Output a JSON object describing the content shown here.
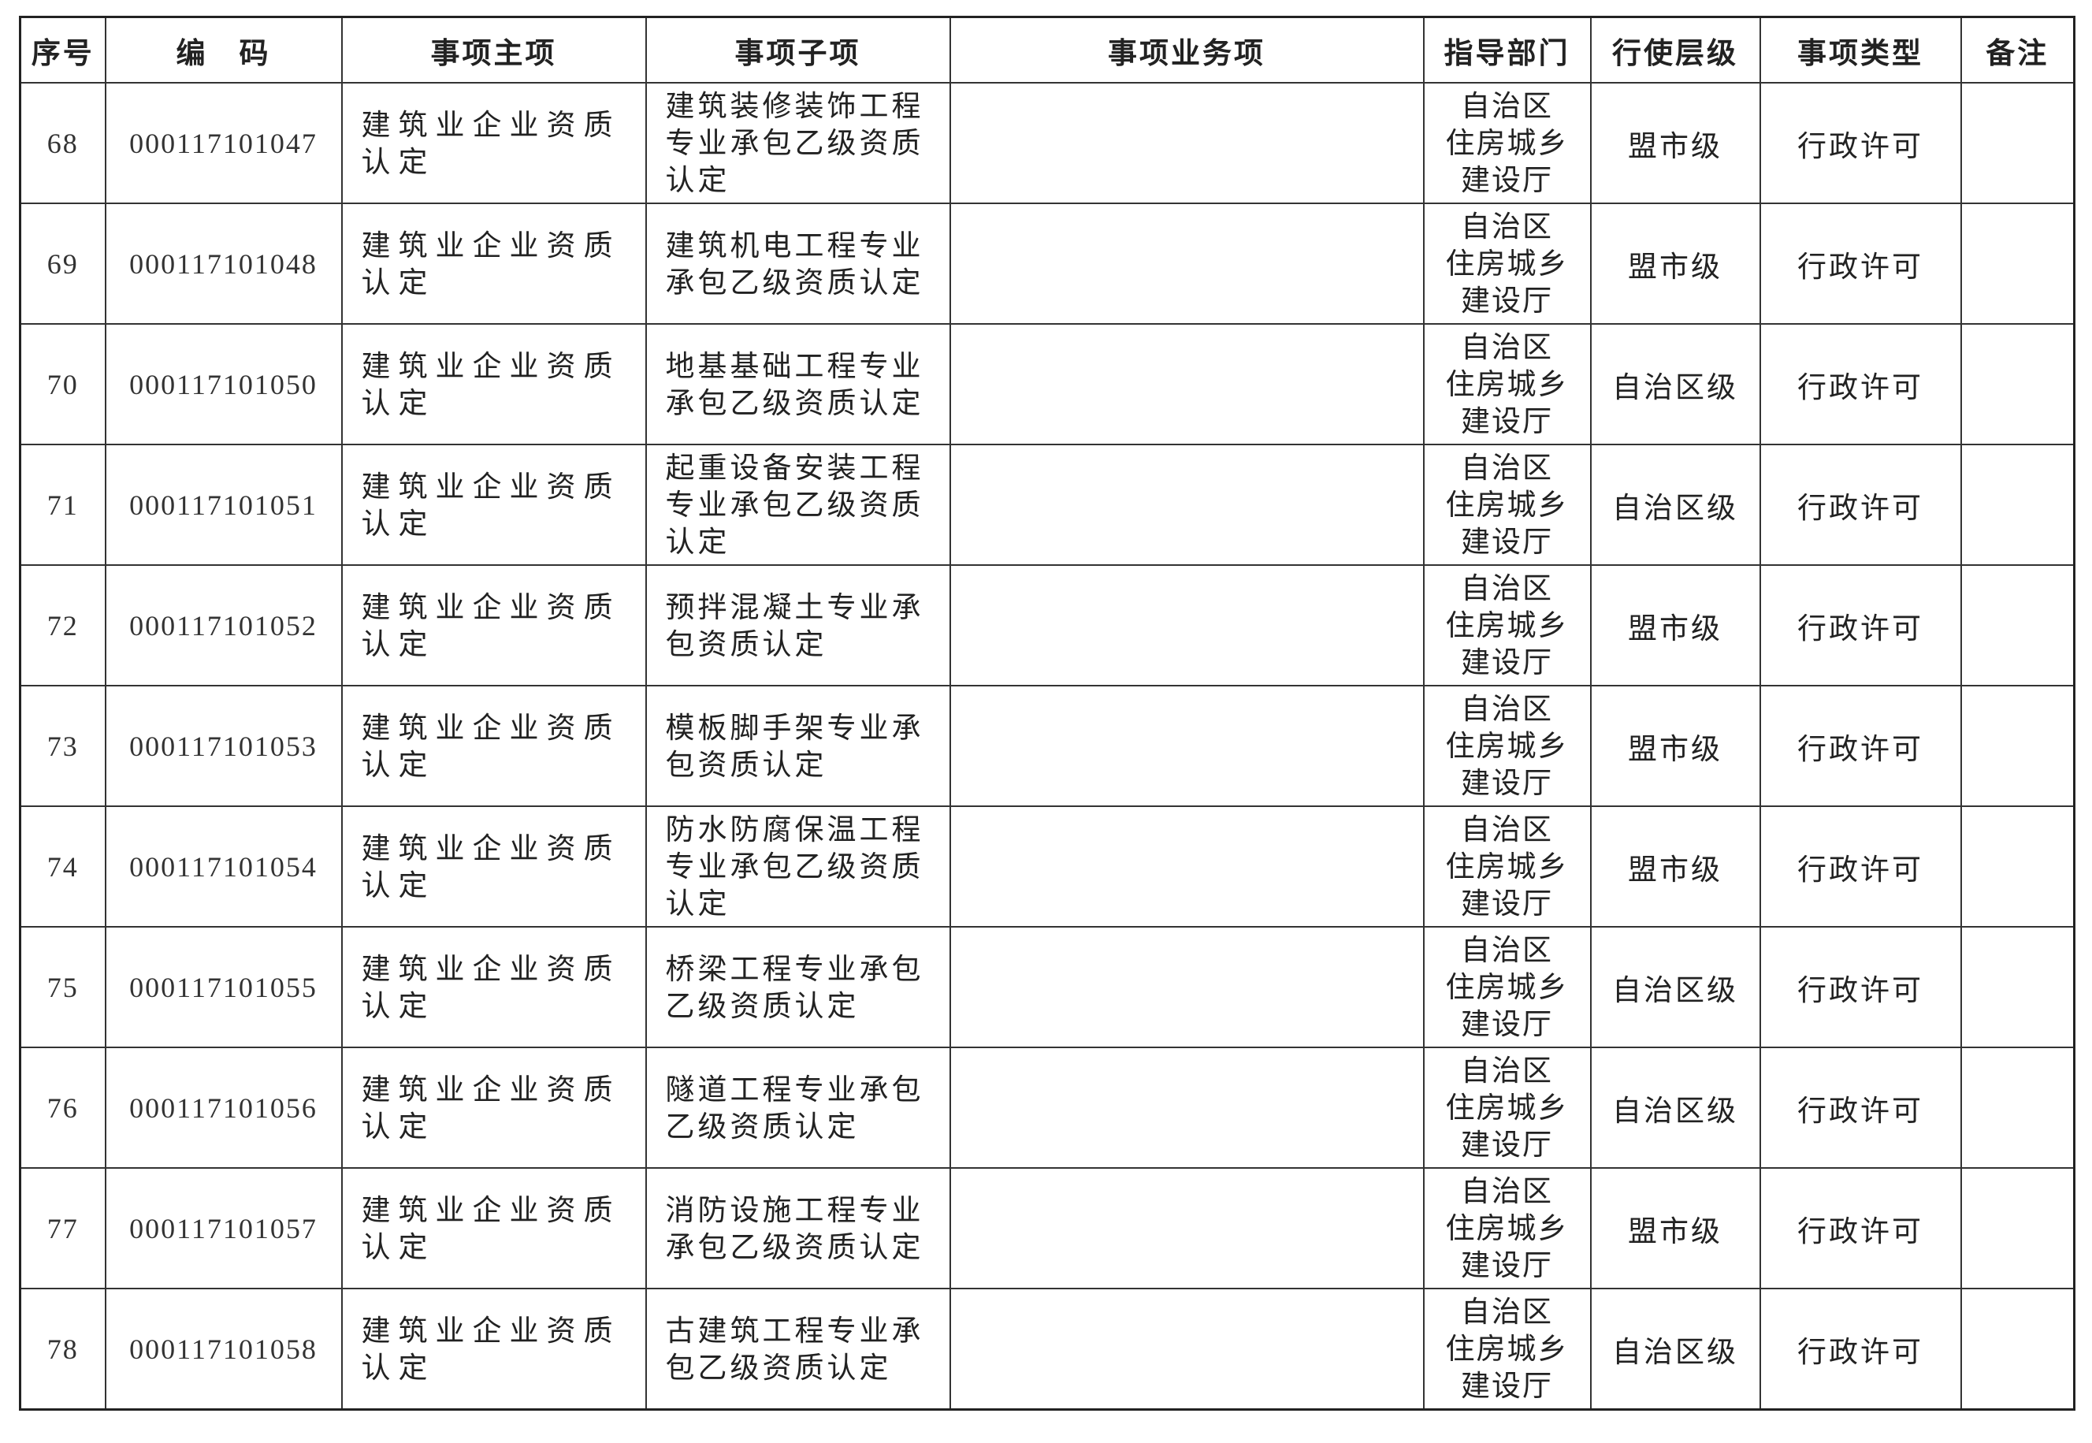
{
  "table": {
    "header": [
      "序号",
      "编　码",
      "事项主项",
      "事项子项",
      "事项业务项",
      "指导部门",
      "行使层级",
      "事项类型",
      "备注"
    ],
    "rows": [
      {
        "no": "68",
        "code": "000117101047",
        "main": "建筑业企业资质认定",
        "sub": "建筑装修装饰工程专业承包乙级资质认定",
        "dept": [
          "自治区",
          "住房城乡",
          "建设厅"
        ],
        "level": "盟市级",
        "type": "行政许可"
      },
      {
        "no": "69",
        "code": "000117101048",
        "main": "建筑业企业资质认定",
        "sub": "建筑机电工程专业承包乙级资质认定",
        "dept": [
          "自治区",
          "住房城乡",
          "建设厅"
        ],
        "level": "盟市级",
        "type": "行政许可"
      },
      {
        "no": "70",
        "code": "000117101050",
        "main": "建筑业企业资质认定",
        "sub": "地基基础工程专业承包乙级资质认定",
        "dept": [
          "自治区",
          "住房城乡",
          "建设厅"
        ],
        "level": "自治区级",
        "type": "行政许可"
      },
      {
        "no": "71",
        "code": "000117101051",
        "main": "建筑业企业资质认定",
        "sub": "起重设备安装工程专业承包乙级资质认定",
        "dept": [
          "自治区",
          "住房城乡",
          "建设厅"
        ],
        "level": "自治区级",
        "type": "行政许可"
      },
      {
        "no": "72",
        "code": "000117101052",
        "main": "建筑业企业资质认定",
        "sub": "预拌混凝土专业承包资质认定",
        "dept": [
          "自治区",
          "住房城乡",
          "建设厅"
        ],
        "level": "盟市级",
        "type": "行政许可"
      },
      {
        "no": "73",
        "code": "000117101053",
        "main": "建筑业企业资质认定",
        "sub": "模板脚手架专业承包资质认定",
        "dept": [
          "自治区",
          "住房城乡",
          "建设厅"
        ],
        "level": "盟市级",
        "type": "行政许可"
      },
      {
        "no": "74",
        "code": "000117101054",
        "main": "建筑业企业资质认定",
        "sub": "防水防腐保温工程专业承包乙级资质认定",
        "dept": [
          "自治区",
          "住房城乡",
          "建设厅"
        ],
        "level": "盟市级",
        "type": "行政许可"
      },
      {
        "no": "75",
        "code": "000117101055",
        "main": "建筑业企业资质认定",
        "sub": "桥梁工程专业承包乙级资质认定",
        "dept": [
          "自治区",
          "住房城乡",
          "建设厅"
        ],
        "level": "自治区级",
        "type": "行政许可"
      },
      {
        "no": "76",
        "code": "000117101056",
        "main": "建筑业企业资质认定",
        "sub": "隧道工程专业承包乙级资质认定",
        "dept": [
          "自治区",
          "住房城乡",
          "建设厅"
        ],
        "level": "自治区级",
        "type": "行政许可"
      },
      {
        "no": "77",
        "code": "000117101057",
        "main": "建筑业企业资质认定",
        "sub": "消防设施工程专业承包乙级资质认定",
        "dept": [
          "自治区",
          "住房城乡",
          "建设厅"
        ],
        "level": "盟市级",
        "type": "行政许可"
      },
      {
        "no": "78",
        "code": "000117101058",
        "main": "建筑业企业资质认定",
        "sub": "古建筑工程专业承包乙级资质认定",
        "dept": [
          "自治区",
          "住房城乡",
          "建设厅"
        ],
        "level": "自治区级",
        "type": "行政许可"
      }
    ]
  }
}
